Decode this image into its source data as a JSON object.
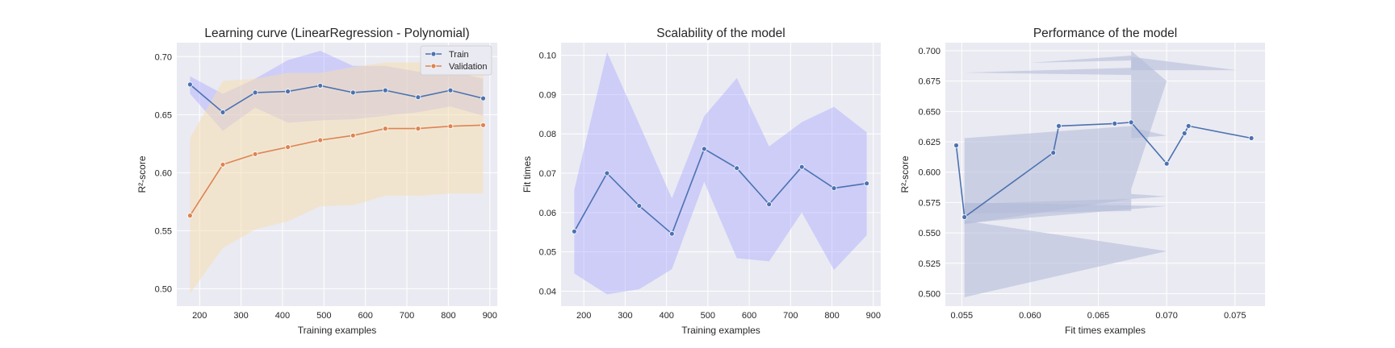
{
  "chart_data": [
    {
      "type": "line",
      "title": "Learning curve (LinearRegression - Polynomial)",
      "xlabel": "Training examples",
      "ylabel": "R²-score",
      "xlim": [
        145,
        918
      ],
      "ylim": [
        0.485,
        0.712
      ],
      "xticks": [
        200,
        300,
        400,
        500,
        600,
        700,
        800,
        900
      ],
      "yticks": [
        0.5,
        0.55,
        0.6,
        0.65,
        0.7
      ],
      "ytick_labels": [
        "0.50",
        "0.55",
        "0.60",
        "0.65",
        "0.70"
      ],
      "legend": {
        "position": "top-right"
      },
      "x": [
        177,
        256,
        334,
        413,
        491,
        570,
        648,
        727,
        805,
        884
      ],
      "series": [
        {
          "name": "Train",
          "color": "#4c72b0",
          "values": [
            0.676,
            0.652,
            0.669,
            0.67,
            0.675,
            0.669,
            0.671,
            0.665,
            0.671,
            0.664
          ],
          "band_color": "#aaaaff",
          "band_lower": [
            0.668,
            0.636,
            0.656,
            0.643,
            0.645,
            0.646,
            0.649,
            0.652,
            0.657,
            0.649
          ],
          "band_upper": [
            0.683,
            0.668,
            0.681,
            0.697,
            0.705,
            0.692,
            0.692,
            0.687,
            0.688,
            0.681
          ]
        },
        {
          "name": "Validation",
          "color": "#dd8452",
          "values": [
            0.563,
            0.607,
            0.616,
            0.622,
            0.628,
            0.632,
            0.638,
            0.638,
            0.64,
            0.641
          ],
          "band_color": "#f5deb3",
          "band_lower": [
            0.496,
            0.535,
            0.551,
            0.558,
            0.571,
            0.572,
            0.58,
            0.58,
            0.582,
            0.582
          ],
          "band_upper": [
            0.63,
            0.679,
            0.681,
            0.686,
            0.686,
            0.691,
            0.695,
            0.695,
            0.697,
            0.699
          ]
        }
      ]
    },
    {
      "type": "line",
      "title": "Scalability of the model",
      "xlabel": "Training examples",
      "ylabel": "Fit times",
      "xlim": [
        145,
        918
      ],
      "ylim": [
        0.0362,
        0.1032
      ],
      "xticks": [
        200,
        300,
        400,
        500,
        600,
        700,
        800,
        900
      ],
      "yticks": [
        0.04,
        0.05,
        0.06,
        0.07,
        0.08,
        0.09,
        0.1
      ],
      "ytick_labels": [
        "0.04",
        "0.05",
        "0.06",
        "0.07",
        "0.08",
        "0.09",
        "0.10"
      ],
      "x": [
        177,
        256,
        334,
        413,
        491,
        570,
        648,
        727,
        805,
        884
      ],
      "series": [
        {
          "color": "#4c72b0",
          "values": [
            0.0552,
            0.07,
            0.0617,
            0.0546,
            0.0762,
            0.0713,
            0.0621,
            0.0716,
            0.0662,
            0.0674
          ],
          "band_color": "#aaaaff",
          "band_lower": [
            0.0445,
            0.0392,
            0.0405,
            0.0456,
            0.0678,
            0.0484,
            0.0476,
            0.06,
            0.0454,
            0.0542
          ],
          "band_upper": [
            0.0658,
            0.1008,
            0.0825,
            0.0636,
            0.0845,
            0.0942,
            0.0768,
            0.083,
            0.0869,
            0.0804
          ]
        }
      ]
    },
    {
      "type": "line",
      "title": "Performance of the model",
      "xlabel": "Fit times examples",
      "ylabel": "R²-score",
      "xlim": [
        0.0538,
        0.0772
      ],
      "ylim": [
        0.4897,
        0.7066
      ],
      "xticks": [
        0.055,
        0.06,
        0.065,
        0.07,
        0.075
      ],
      "xtick_labels": [
        "0.055",
        "0.060",
        "0.065",
        "0.070",
        "0.075"
      ],
      "yticks": [
        0.5,
        0.525,
        0.55,
        0.575,
        0.6,
        0.625,
        0.65,
        0.675,
        0.7
      ],
      "ytick_labels": [
        "0.500",
        "0.525",
        "0.550",
        "0.575",
        "0.600",
        "0.625",
        "0.650",
        "0.675",
        "0.700"
      ],
      "series": [
        {
          "color": "#4c72b0",
          "x": [
            0.0546,
            0.0552,
            0.0617,
            0.0621,
            0.0662,
            0.0674,
            0.07,
            0.0713,
            0.0716,
            0.0762
          ],
          "values": [
            0.622,
            0.563,
            0.616,
            0.638,
            0.64,
            0.641,
            0.607,
            0.632,
            0.638,
            0.628
          ],
          "band_color": "#b4bdd9"
        }
      ]
    }
  ]
}
